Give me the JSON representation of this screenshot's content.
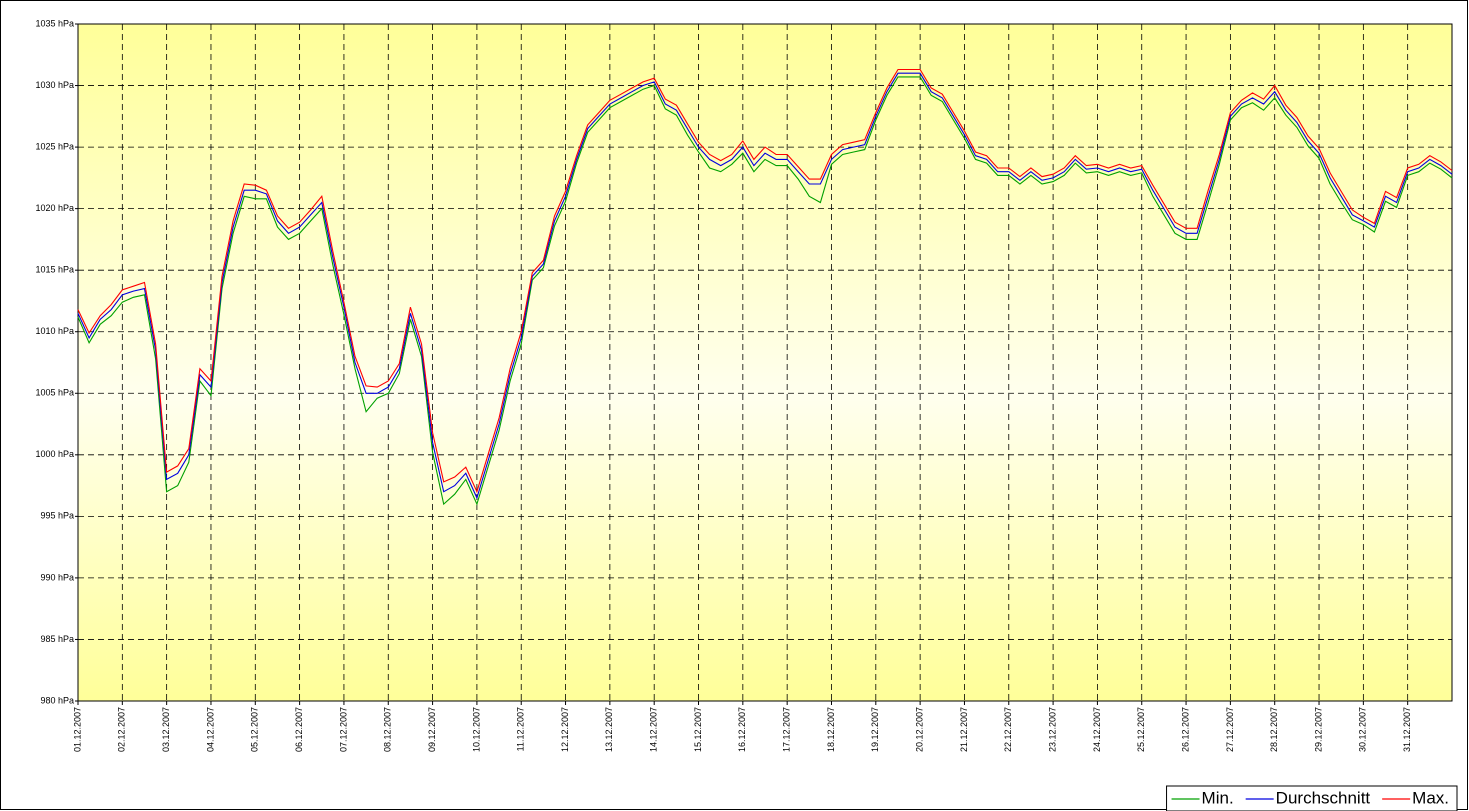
{
  "chart_data": {
    "type": "line",
    "categories": [
      "01.12.2007",
      null,
      null,
      null,
      "02.12.2007",
      null,
      null,
      null,
      "03.12.2007",
      null,
      null,
      null,
      "04.12.2007",
      null,
      null,
      null,
      "05.12.2007",
      null,
      null,
      null,
      "06.12.2007",
      null,
      null,
      null,
      "07.12.2007",
      null,
      null,
      null,
      "08.12.2007",
      null,
      null,
      null,
      "09.12.2007",
      null,
      null,
      null,
      "10.12.2007",
      null,
      null,
      null,
      "11.12.2007",
      null,
      null,
      null,
      "12.12.2007",
      null,
      null,
      null,
      "13.12.2007",
      null,
      null,
      null,
      "14.12.2007",
      null,
      null,
      null,
      "15.12.2007",
      null,
      null,
      null,
      "16.12.2007",
      null,
      null,
      null,
      "17.12.2007",
      null,
      null,
      null,
      "18.12.2007",
      null,
      null,
      null,
      "19.12.2007",
      null,
      null,
      null,
      "20.12.2007",
      null,
      null,
      null,
      "21.12.2007",
      null,
      null,
      null,
      "22.12.2007",
      null,
      null,
      null,
      "23.12.2007",
      null,
      null,
      null,
      "24.12.2007",
      null,
      null,
      null,
      "25.12.2007",
      null,
      null,
      null,
      "26.12.2007",
      null,
      null,
      null,
      "27.12.2007",
      null,
      null,
      null,
      "28.12.2007",
      null,
      null,
      null,
      "29.12.2007",
      null,
      null,
      null,
      "30.12.2007",
      null,
      null,
      null,
      "31.12.2007",
      null,
      null,
      null,
      null
    ],
    "series": [
      {
        "name": "Min.",
        "color": "#00a000",
        "values": [
          1011.2,
          1009.1,
          1010.6,
          1011.3,
          1012.4,
          1012.8,
          1013,
          1007.8,
          997,
          997.5,
          999.4,
          1006,
          1004.8,
          1013.5,
          1018,
          1021,
          1020.8,
          1020.8,
          1018.5,
          1017.5,
          1018,
          1019,
          1020,
          1015.4,
          1011.4,
          1007,
          1003.5,
          1004.6,
          1005,
          1006.6,
          1011,
          1008,
          1000.2,
          996,
          996.8,
          998,
          996,
          999,
          1002,
          1006,
          1009,
          1014.2,
          1015.2,
          1018.6,
          1020.6,
          1023.7,
          1026.2,
          1027.2,
          1028.2,
          1028.7,
          1029.2,
          1029.7,
          1030,
          1028.1,
          1027.6,
          1026,
          1024.6,
          1023.3,
          1023,
          1023.6,
          1024.5,
          1023,
          1024,
          1023.5,
          1023.5,
          1022.4,
          1021,
          1020.5,
          1023.6,
          1024.4,
          1024.6,
          1024.8,
          1027.2,
          1029.2,
          1030.7,
          1030.7,
          1030.7,
          1029.2,
          1028.7,
          1027.2,
          1025.7,
          1024,
          1023.7,
          1022.7,
          1022.7,
          1022,
          1022.7,
          1022,
          1022.2,
          1022.7,
          1023.7,
          1022.9,
          1023,
          1022.7,
          1023,
          1022.7,
          1022.9,
          1021,
          1019.5,
          1018,
          1017.5,
          1017.5,
          1020.5,
          1023.6,
          1027.2,
          1028.2,
          1028.6,
          1028,
          1029,
          1027.6,
          1026.6,
          1025.1,
          1024.1,
          1022,
          1020.5,
          1019.1,
          1018.7,
          1018.1,
          1020.6,
          1020.1,
          1022.7,
          1023,
          1023.7,
          1023.2,
          1022.5
        ]
      },
      {
        "name": "Durchschnitt",
        "color": "#0000e0",
        "values": [
          1011.5,
          1009.5,
          1011,
          1011.8,
          1013,
          1013.3,
          1013.5,
          1008.5,
          998,
          998.5,
          1000,
          1006.5,
          1005.5,
          1014,
          1018.5,
          1021.5,
          1021.5,
          1021.2,
          1019,
          1018,
          1018.5,
          1019.5,
          1020.5,
          1016,
          1012,
          1007.5,
          1005,
          1005,
          1005.5,
          1007,
          1011.5,
          1008.5,
          1001,
          997,
          997.5,
          998.5,
          996.5,
          999.5,
          1002.5,
          1006.5,
          1009.5,
          1014.5,
          1015.5,
          1019,
          1021,
          1024,
          1026.5,
          1027.5,
          1028.5,
          1029,
          1029.5,
          1030,
          1030.3,
          1028.5,
          1028,
          1026.5,
          1025,
          1024,
          1023.5,
          1024,
          1025,
          1023.5,
          1024.5,
          1024,
          1024,
          1023,
          1022,
          1022,
          1024,
          1024.8,
          1025,
          1025.2,
          1027.5,
          1029.5,
          1031,
          1031,
          1031,
          1029.5,
          1029,
          1027.5,
          1026,
          1024.3,
          1024,
          1023,
          1023,
          1022.3,
          1023,
          1022.3,
          1022.5,
          1023,
          1024,
          1023.2,
          1023.3,
          1023,
          1023.3,
          1023,
          1023.2,
          1021.5,
          1020,
          1018.5,
          1018,
          1018,
          1021,
          1024,
          1027.5,
          1028.5,
          1029,
          1028.5,
          1029.5,
          1028,
          1027,
          1025.5,
          1024.5,
          1022.5,
          1021,
          1019.5,
          1019,
          1018.5,
          1021,
          1020.5,
          1023,
          1023.3,
          1024,
          1023.5,
          1022.8
        ]
      },
      {
        "name": "Max.",
        "color": "#ff0000",
        "values": [
          1011.8,
          1009.9,
          1011.3,
          1012.2,
          1013.4,
          1013.7,
          1014,
          1009,
          998.6,
          999.1,
          1000.5,
          1007,
          1006,
          1014.5,
          1019,
          1022,
          1021.9,
          1021.5,
          1019.4,
          1018.4,
          1018.9,
          1019.9,
          1021,
          1016.5,
          1012.4,
          1008,
          1005.6,
          1005.5,
          1006,
          1007.4,
          1012,
          1009,
          1001.8,
          997.8,
          998.2,
          999,
          997,
          1000,
          1003,
          1007,
          1010,
          1014.8,
          1015.8,
          1019.4,
          1021.4,
          1024.3,
          1026.8,
          1027.8,
          1028.8,
          1029.3,
          1029.8,
          1030.3,
          1030.6,
          1028.9,
          1028.4,
          1026.9,
          1025.4,
          1024.4,
          1023.9,
          1024.4,
          1025.5,
          1024,
          1025,
          1024.4,
          1024.4,
          1023.4,
          1022.4,
          1022.4,
          1024.4,
          1025.2,
          1025.4,
          1025.6,
          1027.8,
          1029.8,
          1031.3,
          1031.3,
          1031.3,
          1029.8,
          1029.3,
          1027.8,
          1026.3,
          1024.6,
          1024.3,
          1023.3,
          1023.3,
          1022.6,
          1023.3,
          1022.6,
          1022.8,
          1023.3,
          1024.3,
          1023.5,
          1023.6,
          1023.3,
          1023.6,
          1023.3,
          1023.5,
          1021.9,
          1020.4,
          1018.9,
          1018.4,
          1018.4,
          1021.5,
          1024.4,
          1027.8,
          1028.8,
          1029.4,
          1028.9,
          1030,
          1028.4,
          1027.4,
          1025.9,
          1024.9,
          1022.9,
          1021.4,
          1019.9,
          1019.3,
          1018.8,
          1021.4,
          1020.9,
          1023.3,
          1023.6,
          1024.3,
          1023.8,
          1023.1
        ]
      }
    ],
    "ylim": [
      980,
      1035
    ],
    "yticks": [
      {
        "value": 980,
        "label": "980 hPa"
      },
      {
        "value": 985,
        "label": "985 hPa"
      },
      {
        "value": 990,
        "label": "990 hPa"
      },
      {
        "value": 995,
        "label": "995 hPa"
      },
      {
        "value": 1000,
        "label": "1000 hPa"
      },
      {
        "value": 1005,
        "label": "1005 hPa"
      },
      {
        "value": 1010,
        "label": "1010 hPa"
      },
      {
        "value": 1015,
        "label": "1015 hPa"
      },
      {
        "value": 1020,
        "label": "1020 hPa"
      },
      {
        "value": 1025,
        "label": "1025 hPa"
      },
      {
        "value": 1030,
        "label": "1030 hPa"
      },
      {
        "value": 1035,
        "label": "1035 hPa"
      }
    ],
    "grid": true,
    "legend": "bottom-right"
  }
}
